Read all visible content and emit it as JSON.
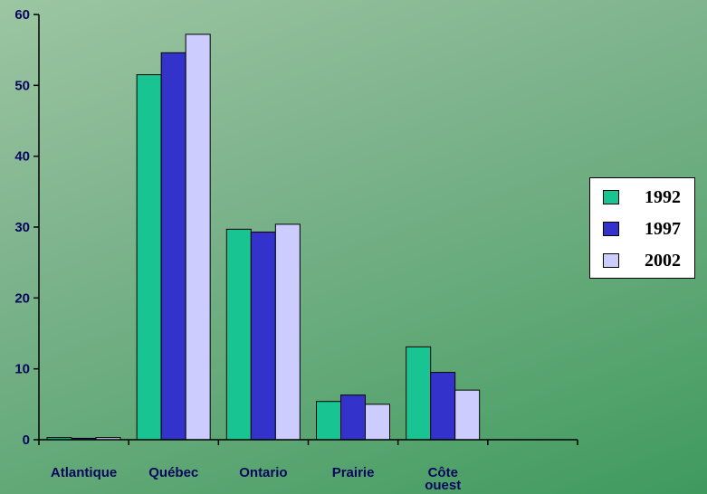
{
  "chart_data": {
    "type": "bar",
    "categories": [
      "Atlantique",
      "Québec",
      "Ontario",
      "Prairie",
      "Côte ouest",
      ""
    ],
    "series": [
      {
        "name": "1992",
        "color": "#19c493",
        "values": [
          0.3,
          51.5,
          29.7,
          5.4,
          13.1,
          null
        ]
      },
      {
        "name": "1997",
        "color": "#3333cc",
        "values": [
          0.2,
          54.6,
          29.3,
          6.3,
          9.5,
          null
        ]
      },
      {
        "name": "2002",
        "color": "#ccccff",
        "values": [
          0.3,
          57.2,
          30.4,
          5.0,
          7.0,
          null
        ]
      }
    ],
    "yticks": [
      0,
      10,
      20,
      30,
      40,
      50,
      60
    ],
    "ylim": [
      0,
      60
    ],
    "grid": false,
    "legend_position": "right"
  }
}
